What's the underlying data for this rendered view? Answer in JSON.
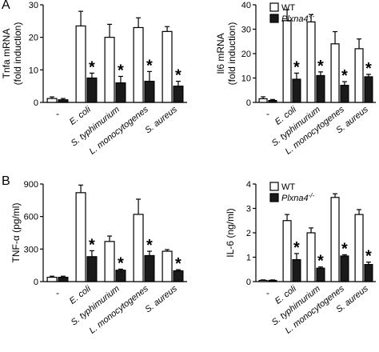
{
  "panel_labels": [
    "A",
    "B"
  ],
  "legend": {
    "wt": "WT",
    "ko_base": "Plxna4",
    "ko_sup": "-/-"
  },
  "categories": [
    "-",
    "E. coli",
    "S. typhimurium",
    "L. monocytogenes",
    "S. aureus"
  ],
  "chart_data": [
    {
      "id": "tnfa-mrna",
      "type": "bar",
      "ylabel": [
        "Tnfa mRNA",
        "(fold induction)"
      ],
      "ylim": [
        0,
        30
      ],
      "ticks": [
        0,
        10,
        20,
        30
      ],
      "categories": [
        "-",
        "E. coli",
        "S. typhimurium",
        "L. monocytogenes",
        "S. aureus"
      ],
      "series": [
        {
          "name": "WT",
          "values": [
            1.2,
            23.5,
            20,
            23,
            21.8
          ],
          "errors": [
            0.5,
            4.5,
            4,
            3,
            1.5
          ],
          "color": "#ffffff"
        },
        {
          "name": "Plxna4-/-",
          "values": [
            0.8,
            7.5,
            6,
            6.5,
            5
          ],
          "errors": [
            0.4,
            1.5,
            2,
            3,
            1.5
          ],
          "color": "#1a1a1a"
        }
      ],
      "significance": [
        false,
        true,
        true,
        true,
        true
      ],
      "legend": false
    },
    {
      "id": "il6-mrna",
      "type": "bar",
      "ylabel": [
        "Il6 mRNA",
        "(fold induction)"
      ],
      "ylim": [
        0,
        40
      ],
      "ticks": [
        0,
        10,
        20,
        30,
        40
      ],
      "categories": [
        "-",
        "E. coli",
        "S. typhimurium",
        "L. monocytogenes",
        "S. aureus"
      ],
      "series": [
        {
          "name": "WT",
          "values": [
            1.5,
            33.5,
            33,
            24,
            22
          ],
          "errors": [
            0.8,
            4.5,
            3,
            5,
            4
          ],
          "color": "#ffffff"
        },
        {
          "name": "Plxna4-/-",
          "values": [
            0.8,
            9.5,
            11,
            7,
            10.5
          ],
          "errors": [
            0.4,
            2.5,
            1.5,
            1.5,
            1
          ],
          "color": "#1a1a1a"
        }
      ],
      "significance": [
        false,
        true,
        true,
        true,
        true
      ],
      "legend": true
    },
    {
      "id": "tnfa-protein",
      "type": "bar",
      "ylabel": [
        "TNF-α (pg/ml)"
      ],
      "ylim": [
        0,
        900
      ],
      "ticks": [
        0,
        300,
        600,
        900
      ],
      "categories": [
        "-",
        "E. coli",
        "S. typhimurium",
        "L. monocytogenes",
        "S. aureus"
      ],
      "series": [
        {
          "name": "WT",
          "values": [
            40,
            820,
            370,
            620,
            280
          ],
          "errors": [
            10,
            70,
            50,
            140,
            15
          ],
          "color": "#ffffff"
        },
        {
          "name": "Plxna4-/-",
          "values": [
            40,
            230,
            105,
            240,
            100
          ],
          "errors": [
            10,
            55,
            10,
            40,
            10
          ],
          "color": "#1a1a1a"
        }
      ],
      "significance": [
        false,
        true,
        true,
        true,
        true
      ],
      "legend": false
    },
    {
      "id": "il6-protein",
      "type": "bar",
      "ylabel": [
        "IL-6 (ng/ml)"
      ],
      "ylim": [
        0,
        4
      ],
      "ticks": [
        0,
        1,
        2,
        3,
        4
      ],
      "categories": [
        "-",
        "E. coli",
        "S. typhimurium",
        "L. monocytogenes",
        "S. aureus"
      ],
      "series": [
        {
          "name": "WT",
          "values": [
            0.05,
            2.5,
            2.0,
            3.45,
            2.75
          ],
          "errors": [
            0.02,
            0.25,
            0.2,
            0.15,
            0.2
          ],
          "color": "#ffffff"
        },
        {
          "name": "Plxna4-/-",
          "values": [
            0.05,
            0.9,
            0.55,
            1.05,
            0.7
          ],
          "errors": [
            0.02,
            0.25,
            0.05,
            0.05,
            0.1
          ],
          "color": "#1a1a1a"
        }
      ],
      "significance": [
        false,
        true,
        true,
        true,
        true
      ],
      "legend": true
    }
  ]
}
